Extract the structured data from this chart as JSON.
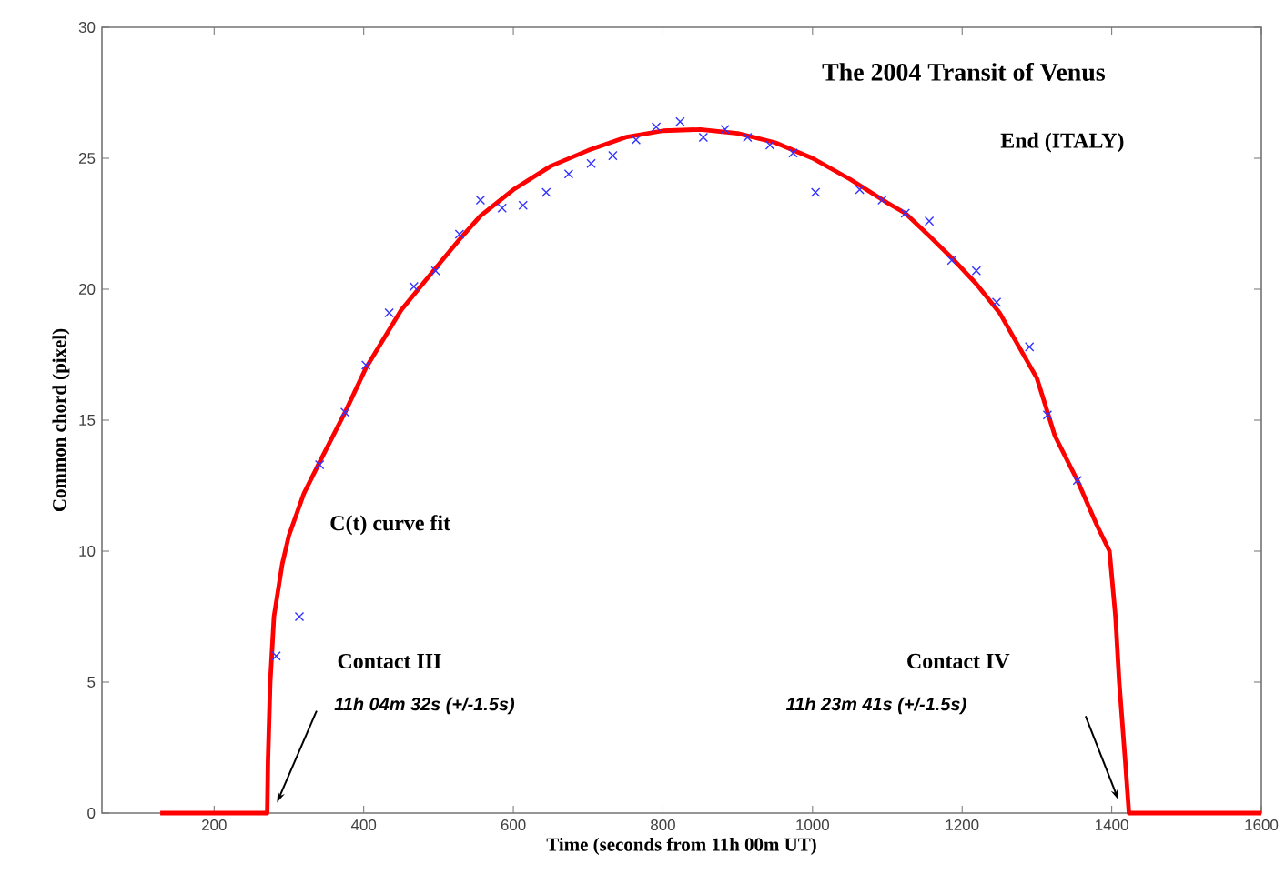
{
  "chart_data": {
    "type": "scatter",
    "title": "The 2004 Transit of Venus",
    "subtitle": "End  (ITALY)",
    "xlabel": "Time (seconds from 11h 00m UT)",
    "ylabel": "Common chord (pixel)",
    "xlim": [
      50,
      1600
    ],
    "ylim": [
      0,
      30
    ],
    "xticks": [
      200,
      400,
      600,
      800,
      1000,
      1200,
      1400,
      1600
    ],
    "yticks": [
      0,
      5,
      10,
      15,
      20,
      25,
      30
    ],
    "grid": false,
    "series": [
      {
        "marker": "cross",
        "color": "#3333ff",
        "x": [
          283,
          314,
          341,
          375,
          403,
          434,
          467,
          496,
          528,
          556,
          585,
          613,
          644,
          674,
          704,
          733,
          764,
          791,
          823,
          854,
          883,
          913,
          943,
          974,
          1004,
          1063,
          1093,
          1124,
          1156,
          1186,
          1219,
          1246,
          1290,
          1314,
          1354
        ],
        "values": [
          6.0,
          7.5,
          13.3,
          15.3,
          17.1,
          19.1,
          20.1,
          20.7,
          22.1,
          23.4,
          23.1,
          23.2,
          23.7,
          24.4,
          24.8,
          25.1,
          25.7,
          26.2,
          26.4,
          25.8,
          26.1,
          25.8,
          25.5,
          25.2,
          23.7,
          23.8,
          23.4,
          22.9,
          22.6,
          21.1,
          20.7,
          19.5,
          17.8,
          15.2,
          12.7
        ]
      },
      {
        "type": "line",
        "marker": "none",
        "line_style": "solid",
        "color": "#ff0000",
        "x": [
          128,
          271,
          272,
          275,
          280,
          291,
          300,
          320,
          341,
          375,
          403,
          450,
          496,
          528,
          556,
          600,
          650,
          700,
          750,
          800,
          850,
          900,
          950,
          1000,
          1050,
          1100,
          1124,
          1150,
          1186,
          1219,
          1250,
          1300,
          1324,
          1354,
          1380,
          1397,
          1405,
          1410,
          1418,
          1423,
          1600
        ],
        "values": [
          0,
          0,
          2,
          5,
          7.5,
          9.5,
          10.6,
          12.2,
          13.4,
          15.3,
          17.0,
          19.2,
          20.8,
          21.9,
          22.8,
          23.8,
          24.7,
          25.3,
          25.8,
          26.05,
          26.1,
          25.95,
          25.6,
          25.0,
          24.2,
          23.3,
          22.9,
          22.2,
          21.2,
          20.2,
          19.1,
          16.6,
          14.4,
          12.7,
          11.0,
          10.0,
          7.5,
          5.0,
          2.0,
          0,
          0
        ]
      }
    ],
    "annotations": [
      "C(t) curve fit",
      "Contact III",
      "11h  04m  32s  (+/-1.5s)",
      "Contact IV",
      "11h  23m  41s (+/-1.5s)"
    ]
  }
}
